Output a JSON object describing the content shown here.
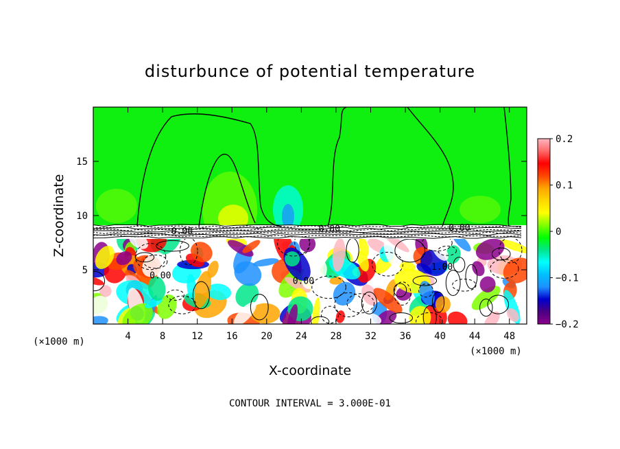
{
  "chart_data": {
    "type": "heatmap",
    "title": "disturbunce of potential temperature",
    "xlabel": "X-coordinate",
    "ylabel": "Z-coordinate",
    "x_unit_note": "(×1000 m)",
    "z_unit_note": "(×1000 m)",
    "xlim": [
      0,
      50
    ],
    "zlim": [
      0,
      20
    ],
    "x_ticks": [
      4,
      8,
      12,
      16,
      20,
      24,
      28,
      32,
      36,
      40,
      44,
      48
    ],
    "z_ticks": [
      5,
      10,
      15
    ],
    "colorbar": {
      "range": [
        -0.2,
        0.2
      ],
      "tick_values": [
        0.2,
        0.1,
        0,
        -0.1,
        -0.2
      ],
      "tick_labels": [
        "0.2",
        "0.1",
        "0",
        "−0.1",
        "−0.2"
      ],
      "colors": [
        "#8b008b",
        "#4b0082",
        "#0000cd",
        "#1e90ff",
        "#00bfff",
        "#00ffff",
        "#00e68a",
        "#00ff00",
        "#7fff00",
        "#ffff00",
        "#ffd700",
        "#ffa500",
        "#ff4500",
        "#ff0000",
        "#ff6a6a",
        "#ffb6c1"
      ]
    },
    "contour_interval_text": "CONTOUR INTERVAL = 3.000E-01",
    "contour_labels": [
      "0.00",
      "0.00",
      "0.00",
      "0.00",
      "1.00",
      "0.00"
    ],
    "layers": [
      {
        "region": "upper",
        "z_range": [
          9,
          20
        ],
        "typical_value": 0.0
      },
      {
        "region": "interface",
        "z_range": [
          7.8,
          9.2
        ],
        "typical_value": 0.0
      },
      {
        "region": "lower",
        "z_range": [
          0,
          7.8
        ],
        "value_range": [
          -0.2,
          0.2
        ]
      }
    ]
  }
}
